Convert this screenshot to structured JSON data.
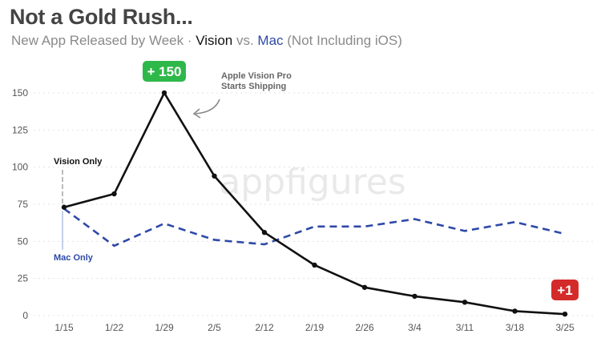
{
  "header": {
    "title": "Not a Gold Rush...",
    "subtitle_prefix": "New App Released by Week · ",
    "subtitle_vision": "Vision",
    "subtitle_vs": " vs. ",
    "subtitle_mac": "Mac",
    "subtitle_suffix": " (Not Including iOS)"
  },
  "watermark": "appfigures",
  "colors": {
    "vision": "#111111",
    "mac": "#2e49a8",
    "badge_high": "#2fb84a",
    "badge_low": "#d42a2a"
  },
  "chart_data": {
    "type": "line",
    "categories": [
      "1/15",
      "1/22",
      "1/29",
      "2/5",
      "2/12",
      "2/19",
      "2/26",
      "3/4",
      "3/11",
      "3/18",
      "3/25"
    ],
    "ylim": [
      0,
      150
    ],
    "yticks": [
      0,
      25,
      50,
      75,
      100,
      125,
      150
    ],
    "grid": true,
    "series": [
      {
        "name": "Vision",
        "style": "solid",
        "color": "#111111",
        "values": [
          73,
          82,
          150,
          94,
          56,
          34,
          19,
          13,
          9,
          3,
          1
        ]
      },
      {
        "name": "Mac",
        "style": "dashed",
        "color": "#2e49a8",
        "values": [
          72,
          47,
          62,
          51,
          48,
          60,
          60,
          65,
          57,
          63,
          55
        ]
      }
    ],
    "annotations": {
      "peak_badge": "+ 150",
      "end_badge": "+1",
      "shipping_line1": "Apple Vision Pro",
      "shipping_line2": "Starts Shipping",
      "vision_only": "Vision Only",
      "mac_only": "Mac Only"
    }
  }
}
